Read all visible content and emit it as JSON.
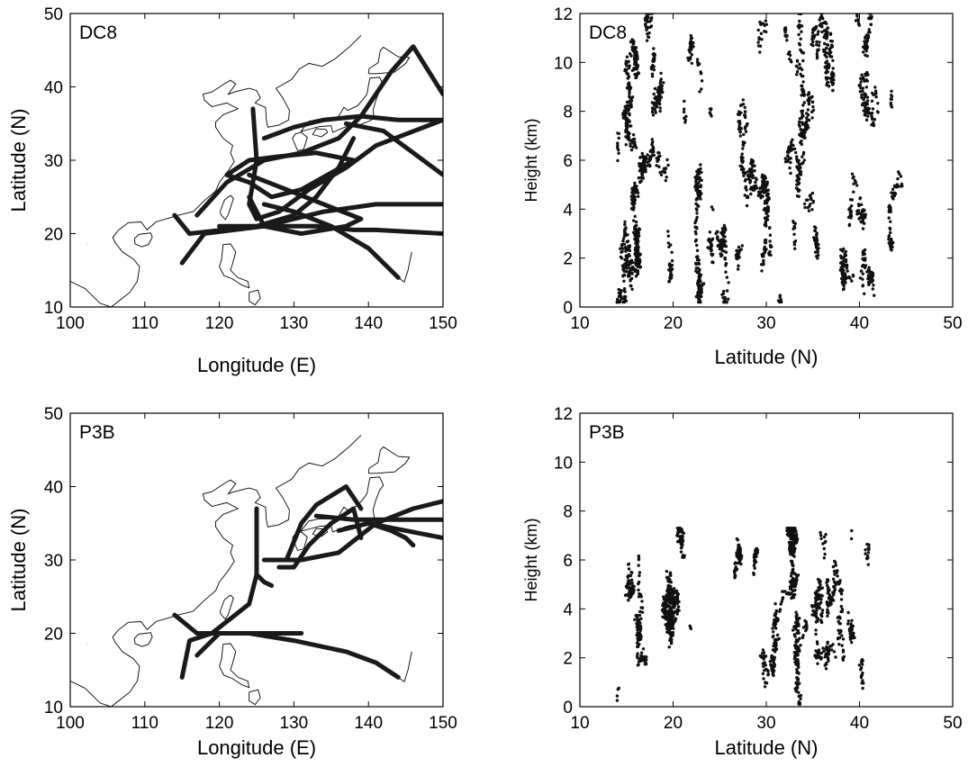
{
  "chart_data": [
    {
      "type": "line",
      "panel_label": "DC8",
      "xlabel": "Longitude (E)",
      "ylabel": "Latitude (N)",
      "xlim": [
        100,
        150
      ],
      "ylim": [
        10,
        50
      ],
      "xticks": [
        100,
        110,
        120,
        130,
        140,
        150
      ],
      "yticks": [
        10,
        20,
        30,
        40,
        50
      ],
      "series": [
        {
          "x": [
            114,
            116,
            125,
            133,
            138,
            141,
            150
          ],
          "y": [
            22.5,
            20,
            21,
            21,
            20.5,
            20.5,
            20
          ]
        },
        {
          "x": [
            115,
            118,
            126,
            134,
            141,
            150
          ],
          "y": [
            16,
            20,
            21,
            23,
            24,
            24
          ]
        },
        {
          "x": [
            124.5,
            125,
            124.5,
            124,
            125,
            128,
            132,
            137,
            141,
            150
          ],
          "y": [
            37,
            30,
            27,
            24,
            22,
            23,
            26,
            29,
            32,
            35.5
          ]
        },
        {
          "x": [
            117,
            121,
            126,
            131,
            136,
            139,
            143,
            146,
            150
          ],
          "y": [
            22.5,
            27,
            30,
            31,
            33,
            36,
            42,
            45.5,
            39
          ]
        },
        {
          "x": [
            126,
            130,
            134,
            139,
            144,
            150
          ],
          "y": [
            33,
            34.5,
            35.5,
            36,
            35.5,
            35.5
          ]
        },
        {
          "x": [
            121,
            124,
            128,
            133,
            138,
            131,
            127,
            124,
            121
          ],
          "y": [
            28,
            30,
            30.5,
            31,
            30,
            26,
            25,
            27,
            28
          ]
        },
        {
          "x": [
            124,
            129,
            134,
            139,
            137,
            131,
            126,
            124
          ],
          "y": [
            28,
            26,
            24,
            22,
            21,
            20,
            21,
            25
          ]
        },
        {
          "x": [
            126,
            130,
            135,
            140,
            144
          ],
          "y": [
            24,
            23,
            21,
            18,
            14
          ]
        },
        {
          "x": [
            137,
            142,
            146,
            150
          ],
          "y": [
            35,
            34,
            31,
            28
          ]
        },
        {
          "x": [
            120,
            125,
            130,
            133,
            136,
            138
          ],
          "y": [
            21,
            21,
            22.5,
            25,
            29,
            33
          ]
        }
      ]
    },
    {
      "type": "scatter",
      "panel_label": "DC8",
      "xlabel": "Latitude (N)",
      "ylabel": "Height (km)",
      "xlim": [
        10,
        50
      ],
      "ylim": [
        0,
        12
      ],
      "xticks": [
        10,
        20,
        30,
        40,
        50
      ],
      "yticks": [
        0,
        2,
        4,
        6,
        8,
        10,
        12
      ],
      "x_extent": [
        14,
        45.5
      ],
      "y_extent": [
        0.2,
        12
      ]
    },
    {
      "type": "line",
      "panel_label": "P3B",
      "xlabel": "Longitude (E)",
      "ylabel": "Latitude (N)",
      "xlim": [
        100,
        150
      ],
      "ylim": [
        10,
        50
      ],
      "xticks": [
        100,
        110,
        120,
        130,
        140,
        150
      ],
      "yticks": [
        10,
        20,
        30,
        40,
        50
      ],
      "series": [
        {
          "x": [
            114,
            117,
            125,
            131
          ],
          "y": [
            22.5,
            20,
            20,
            20
          ]
        },
        {
          "x": [
            115,
            116,
            119,
            124,
            125,
            125
          ],
          "y": [
            14,
            19,
            20,
            24,
            28,
            37
          ]
        },
        {
          "x": [
            117,
            120,
            124,
            130,
            137,
            141,
            144
          ],
          "y": [
            17,
            20,
            20,
            19,
            17.5,
            16,
            14
          ]
        },
        {
          "x": [
            125,
            126,
            127
          ],
          "y": [
            28,
            27,
            26.5
          ]
        },
        {
          "x": [
            128,
            130,
            132,
            135,
            138,
            139
          ],
          "y": [
            29,
            29,
            32,
            35,
            37,
            33
          ]
        },
        {
          "x": [
            129,
            131,
            133,
            137,
            139
          ],
          "y": [
            30,
            35,
            37.5,
            40,
            37
          ]
        },
        {
          "x": [
            126,
            131,
            136,
            141,
            146,
            150
          ],
          "y": [
            30,
            30,
            31,
            35,
            37,
            38
          ]
        },
        {
          "x": [
            133,
            138,
            143,
            150
          ],
          "y": [
            36,
            35.5,
            35.5,
            35.5
          ]
        },
        {
          "x": [
            136,
            140,
            145,
            150
          ],
          "y": [
            34,
            35,
            34,
            33
          ]
        },
        {
          "x": [
            140,
            143,
            145,
            146
          ],
          "y": [
            35,
            34,
            33,
            32
          ]
        }
      ]
    },
    {
      "type": "scatter",
      "panel_label": "P3B",
      "xlabel": "Latitude (N)",
      "ylabel": "Height (km)",
      "xlim": [
        10,
        50
      ],
      "ylim": [
        0,
        12
      ],
      "xticks": [
        10,
        20,
        30,
        40,
        50
      ],
      "yticks": [
        0,
        2,
        4,
        6,
        8,
        10,
        12
      ],
      "x_extent": [
        14,
        41
      ],
      "y_extent": [
        0.1,
        7.3
      ]
    }
  ]
}
